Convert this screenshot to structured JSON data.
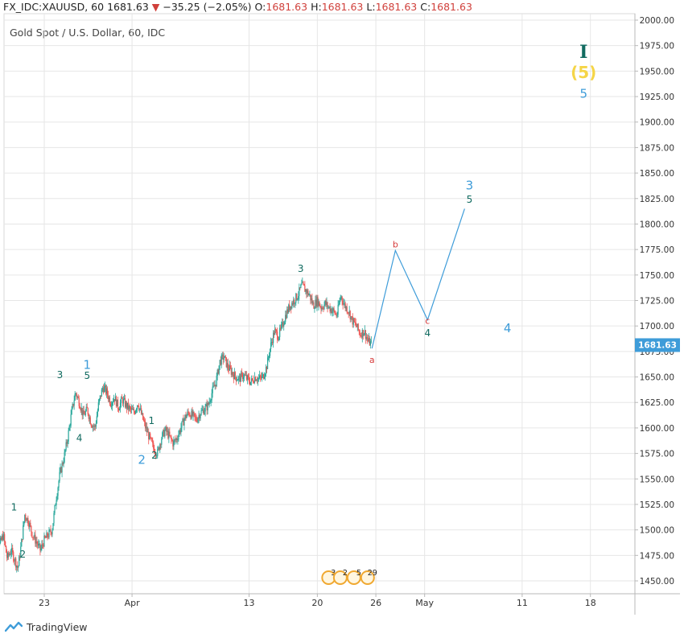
{
  "header": {
    "symbol": "FX_IDC:XAUUSD, 60",
    "last": "1681.63",
    "change_arrow": "▼",
    "change": "−35.25 (−2.05%)",
    "o_label": "O:",
    "o_value": "1681.63",
    "h_label": "H:",
    "h_value": "1681.63",
    "l_label": "L:",
    "l_value": "1681.63",
    "c_label": "C:",
    "c_value": "1681.63"
  },
  "title": "Gold Spot / U.S. Dollar, 60, IDC",
  "footer": {
    "brand": "TradingView",
    "logo_icon": "tradingview-logo-icon"
  },
  "colors": {
    "up": "#26a69a",
    "down": "#ef5350",
    "grid": "#e6e6e6",
    "wave_teal": "#116b60",
    "wave_blue": "#3e9cd9",
    "wave_red": "#d63a3a",
    "wave_yellow": "#f5d547",
    "projection": "#3e9cd9",
    "price_tag": "#3e9cd9"
  },
  "chart_data": {
    "type": "candlestick",
    "timeframe": "60",
    "y_axis": {
      "range": [
        1440,
        2010
      ],
      "ticks": [
        "2000.00",
        "1975.00",
        "1950.00",
        "1925.00",
        "1900.00",
        "1875.00",
        "1850.00",
        "1825.00",
        "1800.00",
        "1775.00",
        "1750.00",
        "1725.00",
        "1700.00",
        "1675.00",
        "1650.00",
        "1625.00",
        "1600.00",
        "1575.00",
        "1550.00",
        "1525.00",
        "1500.00",
        "1475.00",
        "1450.00"
      ],
      "last_price_label": "1681.63"
    },
    "x_axis": {
      "labels": [
        "23",
        "Apr",
        "13",
        "20",
        "26",
        "May",
        "11",
        "18"
      ],
      "label_days": [
        23,
        32,
        44,
        51,
        57,
        62,
        72,
        79
      ],
      "range_days": [
        17.5,
        80.5
      ]
    },
    "price_path": [
      [
        17.6,
        1520
      ],
      [
        18.0,
        1505
      ],
      [
        18.4,
        1485
      ],
      [
        18.8,
        1495
      ],
      [
        19.2,
        1472
      ],
      [
        19.6,
        1480
      ],
      [
        20.0,
        1470
      ],
      [
        20.3,
        1462
      ],
      [
        20.7,
        1490
      ],
      [
        21.0,
        1515
      ],
      [
        21.4,
        1508
      ],
      [
        21.8,
        1495
      ],
      [
        22.2,
        1488
      ],
      [
        22.6,
        1480
      ],
      [
        23.0,
        1490
      ],
      [
        23.4,
        1495
      ],
      [
        23.8,
        1500
      ],
      [
        24.2,
        1530
      ],
      [
        24.6,
        1555
      ],
      [
        25.0,
        1570
      ],
      [
        25.4,
        1590
      ],
      [
        25.8,
        1615
      ],
      [
        26.2,
        1635
      ],
      [
        26.6,
        1625
      ],
      [
        27.0,
        1612
      ],
      [
        27.4,
        1618
      ],
      [
        27.8,
        1605
      ],
      [
        28.2,
        1600
      ],
      [
        28.6,
        1625
      ],
      [
        29.0,
        1640
      ],
      [
        29.4,
        1635
      ],
      [
        29.8,
        1625
      ],
      [
        30.2,
        1630
      ],
      [
        30.6,
        1620
      ],
      [
        31.0,
        1628
      ],
      [
        31.4,
        1622
      ],
      [
        31.8,
        1618
      ],
      [
        32.2,
        1615
      ],
      [
        32.6,
        1625
      ],
      [
        33.0,
        1612
      ],
      [
        33.4,
        1600
      ],
      [
        33.8,
        1590
      ],
      [
        34.2,
        1580
      ],
      [
        34.6,
        1575
      ],
      [
        35.0,
        1590
      ],
      [
        35.4,
        1598
      ],
      [
        35.8,
        1592
      ],
      [
        36.2,
        1585
      ],
      [
        36.6,
        1590
      ],
      [
        37.0,
        1600
      ],
      [
        37.4,
        1610
      ],
      [
        37.8,
        1615
      ],
      [
        38.2,
        1612
      ],
      [
        38.6,
        1608
      ],
      [
        39.0,
        1615
      ],
      [
        39.4,
        1618
      ],
      [
        39.8,
        1622
      ],
      [
        40.2,
        1635
      ],
      [
        40.6,
        1645
      ],
      [
        41.0,
        1665
      ],
      [
        41.4,
        1670
      ],
      [
        41.8,
        1660
      ],
      [
        42.2,
        1655
      ],
      [
        42.6,
        1650
      ],
      [
        43.0,
        1648
      ],
      [
        43.4,
        1652
      ],
      [
        43.8,
        1648
      ],
      [
        44.2,
        1645
      ],
      [
        44.6,
        1650
      ],
      [
        45.0,
        1648
      ],
      [
        45.4,
        1650
      ],
      [
        45.8,
        1660
      ],
      [
        46.2,
        1680
      ],
      [
        46.6,
        1695
      ],
      [
        47.0,
        1690
      ],
      [
        47.4,
        1700
      ],
      [
        47.8,
        1712
      ],
      [
        48.2,
        1720
      ],
      [
        48.6,
        1725
      ],
      [
        49.0,
        1730
      ],
      [
        49.4,
        1740
      ],
      [
        49.8,
        1735
      ],
      [
        50.2,
        1730
      ],
      [
        50.6,
        1720
      ],
      [
        51.0,
        1725
      ],
      [
        51.4,
        1718
      ],
      [
        51.8,
        1722
      ],
      [
        52.2,
        1718
      ],
      [
        52.6,
        1715
      ],
      [
        53.0,
        1710
      ],
      [
        53.4,
        1730
      ],
      [
        53.8,
        1720
      ],
      [
        54.2,
        1715
      ],
      [
        54.6,
        1705
      ],
      [
        55.0,
        1700
      ],
      [
        55.4,
        1692
      ],
      [
        55.8,
        1695
      ],
      [
        56.2,
        1685
      ],
      [
        56.6,
        1681.63
      ]
    ],
    "projection": {
      "x": [
        56.6,
        59.0,
        62.3,
        66.1
      ],
      "y": [
        1678,
        1774,
        1706,
        1815
      ]
    },
    "wave_labels": [
      {
        "text": "1",
        "day": 19.9,
        "price": 1519,
        "color": "teal"
      },
      {
        "text": "2",
        "day": 20.8,
        "price": 1473,
        "color": "teal"
      },
      {
        "text": "3",
        "day": 24.6,
        "price": 1649,
        "color": "teal"
      },
      {
        "text": "4",
        "day": 26.6,
        "price": 1587,
        "color": "teal"
      },
      {
        "text": "5",
        "day": 27.4,
        "price": 1648,
        "color": "teal"
      },
      {
        "text": "1",
        "day": 27.4,
        "price": 1658,
        "color": "blue"
      },
      {
        "text": "1",
        "day": 34.0,
        "price": 1604,
        "color": "teal"
      },
      {
        "text": "2",
        "day": 33.0,
        "price": 1565,
        "color": "blue"
      },
      {
        "text": "2",
        "day": 34.3,
        "price": 1570,
        "color": "teal"
      },
      {
        "text": "3",
        "day": 49.3,
        "price": 1753,
        "color": "teal"
      },
      {
        "text": "a",
        "day": 56.6,
        "price": 1664,
        "color": "red"
      },
      {
        "text": "b",
        "day": 59.0,
        "price": 1777,
        "color": "red"
      },
      {
        "text": "c",
        "day": 62.3,
        "price": 1702,
        "color": "red"
      },
      {
        "text": "4",
        "day": 62.3,
        "price": 1690,
        "color": "teal"
      },
      {
        "text": "3",
        "day": 66.6,
        "price": 1834,
        "color": "blue"
      },
      {
        "text": "5",
        "day": 66.6,
        "price": 1821,
        "color": "teal"
      },
      {
        "text": "4",
        "day": 70.5,
        "price": 1694,
        "color": "blue"
      },
      {
        "text": "I",
        "day": 78.3,
        "price": 1963,
        "color": "teal"
      },
      {
        "text": "(5)",
        "day": 78.3,
        "price": 1943,
        "color": "yellow"
      },
      {
        "text": "5",
        "day": 78.3,
        "price": 1924,
        "color": "blue"
      }
    ],
    "events": [
      {
        "label": "3",
        "day": 52.4
      },
      {
        "label": "2",
        "day": 53.6
      },
      {
        "label": "5",
        "day": 55.0
      },
      {
        "label": "29",
        "day": 56.4
      }
    ]
  }
}
